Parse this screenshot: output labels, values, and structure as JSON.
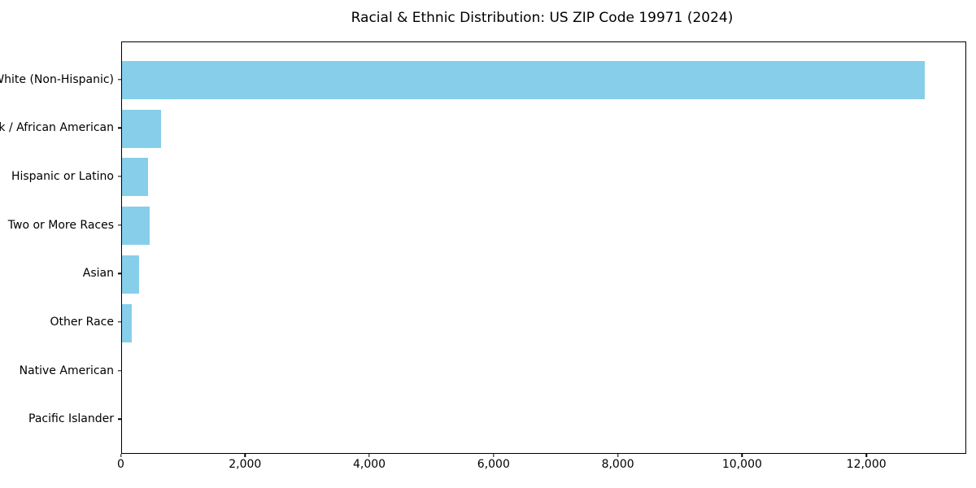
{
  "chart_data": {
    "type": "bar",
    "orientation": "horizontal",
    "title": "Racial & Ethnic Distribution: US ZIP Code 19971 (2024)",
    "categories": [
      "White (Non-Hispanic)",
      "Black / African American",
      "Hispanic or Latino",
      "Two or More Races",
      "Asian",
      "Other Race",
      "Native American",
      "Pacific Islander"
    ],
    "values": [
      12930,
      640,
      430,
      455,
      285,
      160,
      0,
      0
    ],
    "xlabel": "",
    "ylabel": "",
    "xlim": [
      0,
      13575
    ],
    "x_tick_values": [
      0,
      2000,
      4000,
      6000,
      8000,
      10000,
      12000
    ],
    "x_tick_labels": [
      "0",
      "2,000",
      "4,000",
      "6,000",
      "8,000",
      "10,000",
      "12,000"
    ],
    "bar_color": "#87CEEB",
    "axis_color": "#000000",
    "background_color": "#ffffff",
    "grid": false,
    "legend": null
  }
}
